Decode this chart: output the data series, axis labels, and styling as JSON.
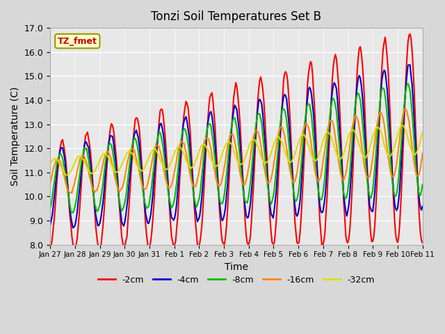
{
  "title": "Tonzi Soil Temperatures Set B",
  "xlabel": "Time",
  "ylabel": "Soil Temperature (C)",
  "ylim": [
    8.0,
    17.0
  ],
  "yticks": [
    8.0,
    9.0,
    10.0,
    11.0,
    12.0,
    13.0,
    14.0,
    15.0,
    16.0,
    17.0
  ],
  "xtick_labels": [
    "Jan 27",
    "Jan 28",
    "Jan 29",
    "Jan 30",
    "Jan 31",
    "Feb 1",
    "Feb 2",
    "Feb 3",
    "Feb 4",
    "Feb 5",
    "Feb 6",
    "Feb 7",
    "Feb 8",
    "Feb 9",
    "Feb 10",
    "Feb 11"
  ],
  "series_colors": [
    "#ff0000",
    "#0000cc",
    "#00bb00",
    "#ff8800",
    "#dddd00"
  ],
  "series_labels": [
    "-2cm",
    "-4cm",
    "-8cm",
    "-16cm",
    "-32cm"
  ],
  "legend_label": "TZ_fmet",
  "plot_bg_color": "#e8e8e8",
  "linewidth": 1.5
}
